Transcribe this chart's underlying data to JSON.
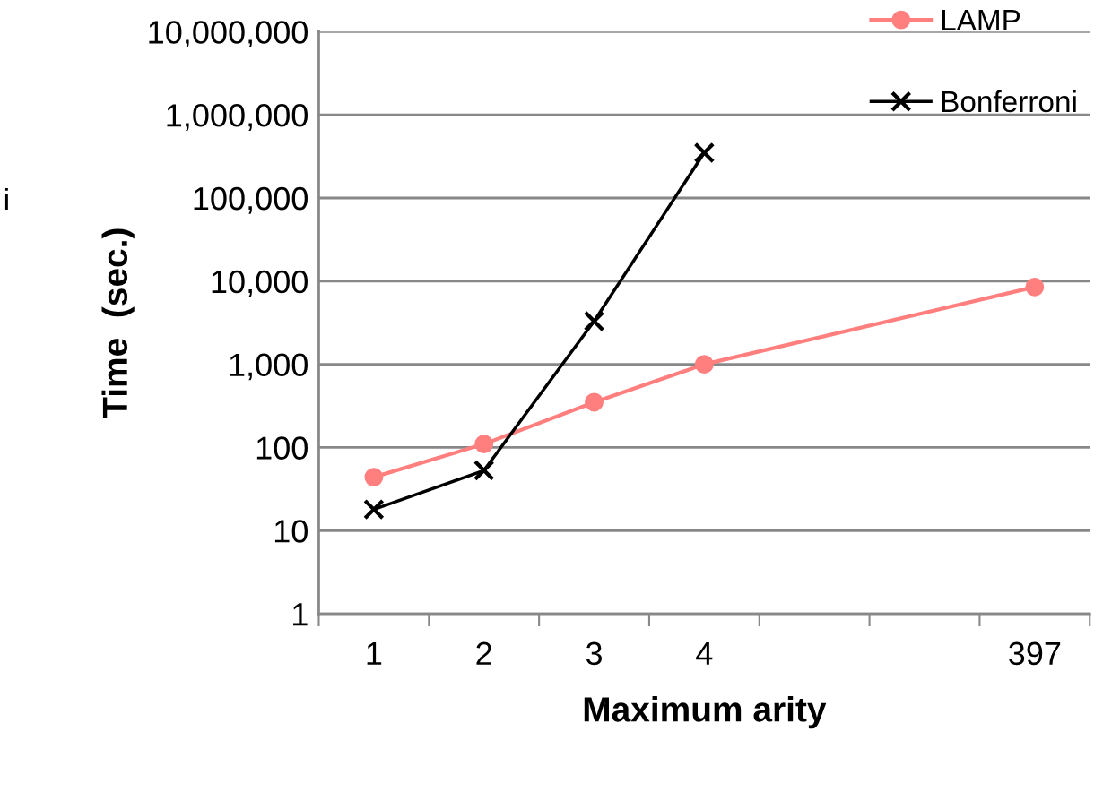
{
  "chart_data": {
    "type": "line",
    "xlabel": "Maximum arity",
    "ylabel": "Time  (sec.)",
    "categories": [
      "1",
      "2",
      "3",
      "4",
      null,
      null,
      "397"
    ],
    "series": [
      {
        "name": "LAMP",
        "color": "#ff7f7f",
        "marker": "circle",
        "values": [
          44,
          110,
          350,
          1000,
          null,
          null,
          8500
        ]
      },
      {
        "name": "Bonferroni",
        "color": "#000000",
        "marker": "cross",
        "values": [
          18,
          53,
          3300,
          350000,
          null,
          null,
          null
        ]
      }
    ],
    "log": "y",
    "ylim": [
      1,
      10000000
    ],
    "yticks": [
      1,
      10,
      {
        "value": 100,
        "label": "100"
      },
      {
        "value": 1000,
        "label": "1,000"
      },
      {
        "value": 10000,
        "label": "10,000"
      },
      {
        "value": 100000,
        "label": "100,000"
      },
      {
        "value": 1000000,
        "label": "1,000,000"
      },
      {
        "value": 10000000,
        "label": "10,000,000"
      }
    ],
    "grid": "y",
    "legend": "top right",
    "line_style": "solid",
    "annotations": [
      "i"
    ]
  }
}
